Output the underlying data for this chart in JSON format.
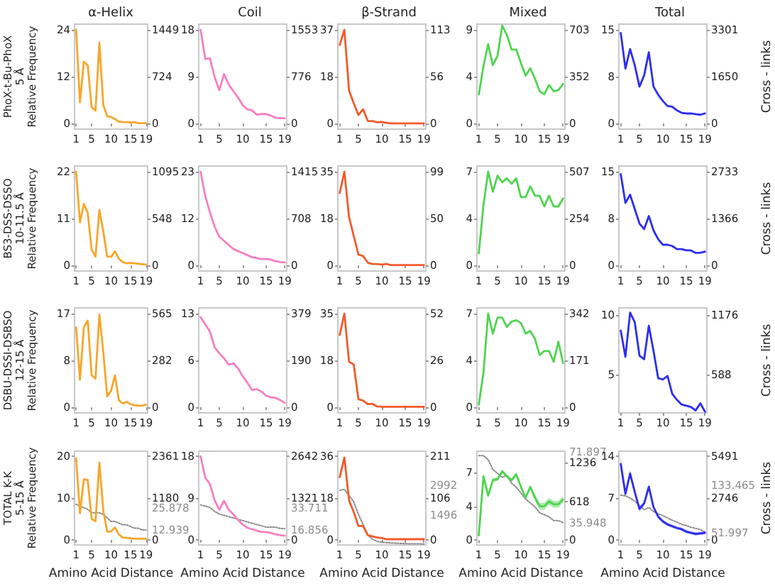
{
  "chart_data": [
    {
      "type": "line",
      "title": "α-Helix",
      "ylabel": "PhoX-t-Bu-PhoX\n5 Å\nRelative Frequency",
      "marker": "none",
      "x": [
        1,
        2,
        3,
        4,
        5,
        6,
        7,
        8,
        9,
        10,
        11,
        12,
        13,
        14,
        15,
        16,
        17,
        18,
        19
      ],
      "xlim": [
        0.6,
        19.4
      ],
      "xticks": [
        1,
        5,
        10,
        15,
        19
      ],
      "ylim": [
        -1.4,
        25.4
      ],
      "yticks": [
        0,
        12,
        24
      ],
      "y2lim": [
        -87,
        1536
      ],
      "y2ticks": [
        0,
        {
          "value": 724.5,
          "label": "724"
        },
        1449
      ],
      "series": [
        {
          "color": "#f7a62b",
          "values": [
            24,
            5.4,
            15.8,
            14.9,
            4.2,
            3.3,
            20.7,
            4.8,
            1.9,
            1.7,
            1.2,
            0.5,
            0.4,
            0.4,
            0.3,
            0.4,
            0.1,
            0.1,
            0.1
          ]
        }
      ]
    },
    {
      "type": "line",
      "title": "Coil",
      "marker": "none",
      "x": [
        1,
        2,
        3,
        4,
        5,
        6,
        7,
        8,
        9,
        10,
        11,
        12,
        13,
        14,
        15,
        16,
        17,
        18,
        19
      ],
      "xlim": [
        0.6,
        19.4
      ],
      "xticks": [
        1,
        5,
        10,
        15,
        19
      ],
      "ylim": [
        -1.1,
        19.1
      ],
      "yticks": [
        0,
        9,
        18
      ],
      "y2lim": [
        -93,
        1646
      ],
      "y2ticks": [
        0,
        {
          "value": 776.5,
          "label": "776"
        },
        1553
      ],
      "series": [
        {
          "color": "#f57fc0",
          "values": [
            18,
            12.4,
            12.5,
            8.9,
            6.4,
            9.5,
            7.5,
            6.2,
            5.0,
            3.5,
            2.7,
            2.5,
            1.7,
            1.8,
            1.8,
            1.5,
            1.1,
            1.0,
            1.0
          ]
        }
      ]
    },
    {
      "type": "line",
      "title": "β-Strand",
      "marker": "none",
      "x": [
        1,
        2,
        3,
        4,
        5,
        6,
        7,
        8,
        9,
        10,
        11,
        12,
        13,
        14,
        15,
        16,
        17,
        18,
        19
      ],
      "xlim": [
        0.6,
        19.4
      ],
      "xticks": [
        1,
        5,
        10,
        15,
        19
      ],
      "ylim": [
        -2.2,
        39.2
      ],
      "yticks": [
        0,
        {
          "value": 18.5,
          "label": "18"
        },
        37
      ],
      "y2lim": [
        -6.8,
        119.8
      ],
      "y2ticks": [
        0,
        {
          "value": 56.5,
          "label": "56"
        },
        113
      ],
      "series": [
        {
          "color": "#f25a2c",
          "values": [
            31,
            37,
            13,
            8,
            3.4,
            5.6,
            1,
            1,
            0.5,
            0.6,
            0.3,
            0.1,
            0.1,
            0.1,
            0.1,
            0.1,
            0.1,
            0.1,
            0.1
          ]
        }
      ]
    },
    {
      "type": "line",
      "title": "Mixed",
      "marker": "none",
      "x": [
        1,
        2,
        3,
        4,
        5,
        6,
        7,
        8,
        9,
        10,
        11,
        12,
        13,
        14,
        15,
        16,
        17,
        18,
        19
      ],
      "xlim": [
        0.6,
        19.4
      ],
      "xticks": [
        1,
        5,
        10,
        15,
        19
      ],
      "ylim": [
        -0.54,
        9.54
      ],
      "yticks": [
        0,
        {
          "value": 4.5,
          "label": "4"
        },
        9
      ],
      "y2lim": [
        -42,
        745
      ],
      "y2ticks": [
        0,
        {
          "value": 351.5,
          "label": "352"
        },
        703
      ],
      "series": [
        {
          "color": "#4fd44f",
          "values": [
            2.8,
            5.5,
            7.6,
            5.6,
            6.5,
            9.4,
            8.5,
            7.1,
            7.1,
            5.8,
            4.6,
            5.3,
            4.3,
            3.1,
            2.8,
            3.7,
            3.1,
            3.2,
            3.8
          ]
        }
      ]
    },
    {
      "type": "line",
      "title": "Total",
      "y2label": "Cross - links",
      "marker": "none",
      "x": [
        1,
        2,
        3,
        4,
        5,
        6,
        7,
        8,
        9,
        10,
        11,
        12,
        13,
        14,
        15,
        16,
        17,
        18,
        19
      ],
      "xlim": [
        0.6,
        19.4
      ],
      "xticks": [
        1,
        5,
        10,
        15,
        19
      ],
      "ylim": [
        -0.9,
        15.9
      ],
      "yticks": [
        0,
        {
          "value": 7.5,
          "label": "8"
        },
        15
      ],
      "y2lim": [
        -198,
        3499
      ],
      "y2ticks": [
        0,
        {
          "value": 1650.5,
          "label": "1650"
        },
        3301
      ],
      "series": [
        {
          "color": "#2d2df0",
          "values": [
            14.5,
            8.8,
            11.9,
            9.3,
            5.9,
            7.7,
            11.4,
            5.9,
            4.6,
            3.6,
            2.8,
            2.7,
            2.1,
            1.7,
            1.6,
            1.6,
            1.5,
            1.4,
            1.6
          ]
        }
      ]
    },
    {
      "type": "line",
      "ylabel": "BS3-DSS-DSSO\n10-11.5 Å\nRelative Frequency",
      "marker": "none",
      "x": [
        1,
        2,
        3,
        4,
        5,
        6,
        7,
        8,
        9,
        10,
        11,
        12,
        13,
        14,
        15,
        16,
        17,
        18,
        19
      ],
      "xlim": [
        0.6,
        19.4
      ],
      "xticks": [
        1,
        5,
        10,
        15,
        19
      ],
      "ylim": [
        -1.3,
        23.3
      ],
      "yticks": [
        0,
        11,
        22
      ],
      "y2lim": [
        -66,
        1161
      ],
      "y2ticks": [
        0,
        {
          "value": 547.5,
          "label": "548"
        },
        1095
      ],
      "series": [
        {
          "color": "#f7a62b",
          "values": [
            22,
            10.1,
            14.4,
            12.3,
            3.7,
            2.1,
            13,
            8,
            2.1,
            2.0,
            3.3,
            1.6,
            0.8,
            0.5,
            0.6,
            0.5,
            0.4,
            0.3,
            0.2
          ]
        }
      ]
    },
    {
      "type": "line",
      "marker": "none",
      "x": [
        1,
        2,
        3,
        4,
        5,
        6,
        7,
        8,
        9,
        10,
        11,
        12,
        13,
        14,
        15,
        16,
        17,
        18,
        19
      ],
      "xlim": [
        0.6,
        19.4
      ],
      "xticks": [
        1,
        5,
        10,
        15,
        19
      ],
      "ylim": [
        -1.4,
        24.4
      ],
      "yticks": [
        0,
        {
          "value": 11.5,
          "label": "12"
        },
        23
      ],
      "y2lim": [
        -85,
        1500
      ],
      "y2ticks": [
        0,
        {
          "value": 707.5,
          "label": "708"
        },
        1415
      ],
      "series": [
        {
          "color": "#f57fc0",
          "values": [
            23,
            17,
            13,
            9.5,
            7,
            6,
            5,
            4,
            3.5,
            3,
            2.5,
            2,
            1.8,
            1.5,
            1.6,
            1.4,
            1,
            0.8,
            0.7
          ]
        }
      ]
    },
    {
      "type": "line",
      "marker": "none",
      "x": [
        1,
        2,
        3,
        4,
        5,
        6,
        7,
        8,
        9,
        10,
        11,
        12,
        13,
        14,
        15,
        16,
        17,
        18,
        19
      ],
      "xlim": [
        0.6,
        19.4
      ],
      "xticks": [
        1,
        5,
        10,
        15,
        19
      ],
      "ylim": [
        -2.1,
        37.1
      ],
      "yticks": [
        0,
        {
          "value": 17.5,
          "label": "18"
        },
        35
      ],
      "y2lim": [
        -5.9,
        104.9
      ],
      "y2ticks": [
        0,
        {
          "value": 49.5,
          "label": "50"
        },
        99
      ],
      "series": [
        {
          "color": "#f25a2c",
          "values": [
            27,
            35,
            18,
            11,
            4,
            3.5,
            1,
            0.5,
            0.5,
            0.3,
            0.5,
            0.1,
            0.1,
            0.1,
            0.1,
            0.1,
            0.1,
            0.1,
            0.1
          ]
        }
      ]
    },
    {
      "type": "line",
      "marker": "none",
      "x": [
        1,
        2,
        3,
        4,
        5,
        6,
        7,
        8,
        9,
        10,
        11,
        12,
        13,
        14,
        15,
        16,
        17,
        18,
        19
      ],
      "xlim": [
        0.6,
        19.4
      ],
      "xticks": [
        1,
        5,
        10,
        15,
        19
      ],
      "ylim": [
        -0.42,
        7.42
      ],
      "yticks": [
        0,
        {
          "value": 3.5,
          "label": "4"
        },
        7
      ],
      "y2lim": [
        -30,
        537
      ],
      "y2ticks": [
        0,
        {
          "value": 253.5,
          "label": "254"
        },
        507
      ],
      "series": [
        {
          "color": "#4fd44f",
          "values": [
            0.9,
            4.5,
            7,
            5.5,
            6.7,
            6.2,
            6.5,
            6.1,
            6.5,
            5.1,
            5.1,
            5.9,
            5.2,
            5.2,
            4.4,
            5.2,
            4.4,
            4.4,
            5.0
          ]
        }
      ]
    },
    {
      "type": "line",
      "y2label": "Cross - links",
      "marker": "none",
      "x": [
        1,
        2,
        3,
        4,
        5,
        6,
        7,
        8,
        9,
        10,
        11,
        12,
        13,
        14,
        15,
        16,
        17,
        18,
        19
      ],
      "xlim": [
        0.6,
        19.4
      ],
      "xticks": [
        1,
        5,
        10,
        15,
        19
      ],
      "ylim": [
        -0.9,
        15.9
      ],
      "yticks": [
        0,
        {
          "value": 7.5,
          "label": "8"
        },
        15
      ],
      "y2lim": [
        -164,
        2897
      ],
      "y2ticks": [
        0,
        {
          "value": 1366.5,
          "label": "1366"
        },
        2733
      ],
      "series": [
        {
          "color": "#2d2df0",
          "values": [
            14.6,
            10,
            11.3,
            9,
            6.7,
            5.8,
            7.9,
            5.6,
            4.2,
            3.3,
            3.3,
            3.1,
            2.6,
            2.6,
            2.4,
            2.4,
            2.0,
            2.0,
            2.2
          ]
        }
      ]
    },
    {
      "type": "line",
      "ylabel": "DSBU-DSSI-DSBSO\n12-15 Å\nRelative Frequency",
      "marker": "none",
      "x": [
        1,
        2,
        3,
        4,
        5,
        6,
        7,
        8,
        9,
        10,
        11,
        12,
        13,
        14,
        15,
        16,
        17,
        18,
        19
      ],
      "xlim": [
        0.6,
        19.4
      ],
      "xticks": [
        1,
        5,
        10,
        15,
        19
      ],
      "ylim": [
        -1.0,
        18.0
      ],
      "yticks": [
        0,
        {
          "value": 8.5,
          "label": "8"
        },
        17
      ],
      "y2lim": [
        -34,
        599
      ],
      "y2ticks": [
        0,
        {
          "value": 282.5,
          "label": "282"
        },
        565
      ],
      "series": [
        {
          "color": "#f7a62b",
          "values": [
            14.5,
            5,
            14.5,
            15.7,
            5.8,
            5.2,
            16.8,
            10,
            2,
            3,
            5.8,
            1.3,
            0.7,
            1,
            0.6,
            0.4,
            0.3,
            0.3,
            0.5
          ]
        }
      ]
    },
    {
      "type": "line",
      "marker": "none",
      "x": [
        1,
        2,
        3,
        4,
        5,
        6,
        7,
        8,
        9,
        10,
        11,
        12,
        13,
        14,
        15,
        16,
        17,
        18,
        19
      ],
      "xlim": [
        0.6,
        19.4
      ],
      "xticks": [
        1,
        5,
        10,
        15,
        19
      ],
      "ylim": [
        -0.78,
        13.78
      ],
      "yticks": [
        0,
        {
          "value": 6.5,
          "label": "6"
        },
        13
      ],
      "y2lim": [
        -23,
        402
      ],
      "y2ticks": [
        0,
        {
          "value": 189.5,
          "label": "190"
        },
        379
      ],
      "series": [
        {
          "color": "#f57fc0",
          "values": [
            12.5,
            11.5,
            10.5,
            8.3,
            7.5,
            6.8,
            5.9,
            6.1,
            5.4,
            4.3,
            3.4,
            2.4,
            2.5,
            2.2,
            1.6,
            1.4,
            1.3,
            1.0,
            0.6
          ]
        }
      ]
    },
    {
      "type": "line",
      "marker": "none",
      "x": [
        1,
        2,
        3,
        4,
        5,
        6,
        7,
        8,
        9,
        10,
        11,
        12,
        13,
        14,
        15,
        16,
        17,
        18,
        19
      ],
      "xlim": [
        0.6,
        19.4
      ],
      "xticks": [
        1,
        5,
        10,
        15,
        19
      ],
      "ylim": [
        -2.1,
        37.1
      ],
      "yticks": [
        0,
        {
          "value": 17.5,
          "label": "18"
        },
        35
      ],
      "y2lim": [
        -3.1,
        55.1
      ],
      "y2ticks": [
        0,
        26,
        52
      ],
      "series": [
        {
          "color": "#f25a2c",
          "values": [
            27,
            35,
            17,
            16,
            3,
            2.5,
            1.2,
            1.3,
            0.3,
            0.2,
            0.2,
            0.2,
            0.2,
            0.2,
            0.2,
            0.2,
            0.2,
            0.2,
            0.2
          ]
        }
      ]
    },
    {
      "type": "line",
      "marker": "none",
      "x": [
        1,
        2,
        3,
        4,
        5,
        6,
        7,
        8,
        9,
        10,
        11,
        12,
        13,
        14,
        15,
        16,
        17,
        18,
        19
      ],
      "xlim": [
        0.6,
        19.4
      ],
      "xticks": [
        1,
        5,
        10,
        15,
        19
      ],
      "ylim": [
        -0.42,
        7.42
      ],
      "yticks": [
        0,
        {
          "value": 3.5,
          "label": "4"
        },
        7
      ],
      "y2lim": [
        -21,
        363
      ],
      "y2ticks": [
        0,
        171,
        342
      ],
      "series": [
        {
          "color": "#4fd44f",
          "values": [
            0.2,
            2.6,
            7,
            5.5,
            6.7,
            6.7,
            6.0,
            6.4,
            6.5,
            6.3,
            5.5,
            5.7,
            5.1,
            3.9,
            4.2,
            4.2,
            3.4,
            4.9,
            3.3
          ]
        }
      ]
    },
    {
      "type": "line",
      "y2label": "Cross - links",
      "marker": "none",
      "x": [
        1,
        2,
        3,
        4,
        5,
        6,
        7,
        8,
        9,
        10,
        11,
        12,
        13,
        14,
        15,
        16,
        17,
        18,
        19
      ],
      "xlim": [
        0.6,
        19.4
      ],
      "xticks": [
        1,
        5,
        10,
        15,
        19
      ],
      "ylim": [
        1.8,
        10.6
      ],
      "yticks": [
        5,
        10
      ],
      "y2lim": [
        212,
        1247
      ],
      "y2ticks": [
        588,
        1176
      ],
      "series": [
        {
          "color": "#2d2df0",
          "values": [
            8.7,
            6.5,
            10.2,
            9.4,
            6.6,
            6.3,
            9.1,
            7,
            4.7,
            4.6,
            4.9,
            3.4,
            2.9,
            2.5,
            2.4,
            2.3,
            2.0,
            2.6,
            1.9
          ]
        }
      ]
    },
    {
      "type": "line",
      "ylabel": "TOTAL K-K\n5-15 Å\nRelative Frequency",
      "xlabel": "Amino Acid Distance",
      "marker": "none",
      "x": [
        1,
        2,
        3,
        4,
        5,
        6,
        7,
        8,
        9,
        10,
        11,
        12,
        13,
        14,
        15,
        16,
        17,
        18,
        19
      ],
      "xlim": [
        0.6,
        19.4
      ],
      "xticks": [
        1,
        5,
        10,
        15,
        19
      ],
      "ylim": [
        -1.2,
        21.2
      ],
      "yticks": [
        0,
        10,
        20
      ],
      "y2lim": [
        -142,
        2503
      ],
      "y2ticks": [
        0,
        {
          "value": 1180.5,
          "label": "1180"
        },
        2361
      ],
      "y3lim": [
        4.2,
        59.0
      ],
      "y3ticks": [
        12.939,
        25.878
      ],
      "series": [
        {
          "color": "#f7a62b",
          "values": [
            19.5,
            6.4,
            14.5,
            14.3,
            5,
            4.5,
            18.5,
            7,
            2,
            2,
            3,
            1.3,
            0.6,
            0.5,
            0.4,
            0.3,
            0.3,
            0.3,
            0.3
          ]
        },
        {
          "axis": "y3",
          "color": "#8c8c8c",
          "line_style": "dotted",
          "values": [
            28,
            27,
            26,
            25,
            23,
            23,
            23,
            22,
            20,
            18,
            18,
            17,
            16,
            16,
            15,
            14,
            14,
            13,
            13
          ]
        }
      ]
    },
    {
      "type": "line",
      "xlabel": "Amino Acid Distance",
      "marker": "none",
      "x": [
        1,
        2,
        3,
        4,
        5,
        6,
        7,
        8,
        9,
        10,
        11,
        12,
        13,
        14,
        15,
        16,
        17,
        18,
        19
      ],
      "xlim": [
        0.6,
        19.4
      ],
      "xticks": [
        1,
        5,
        10,
        15,
        19
      ],
      "ylim": [
        -1.1,
        19.1
      ],
      "yticks": [
        0,
        9,
        18
      ],
      "y2lim": [
        -159,
        2801
      ],
      "y2ticks": [
        0,
        1321,
        2642
      ],
      "y3lim": [
        5.4,
        76.9
      ],
      "y3ticks": [
        16.856,
        33.711
      ],
      "series": [
        {
          "color": "#f57fc0",
          "values": [
            18,
            13.4,
            12,
            8.5,
            6.5,
            8.4,
            6.5,
            5.5,
            4.3,
            3.3,
            2.6,
            2.3,
            2,
            1.7,
            1.7,
            1.5,
            1.2,
            1.0,
            0.9
          ]
        },
        {
          "axis": "y3",
          "color": "#8c8c8c",
          "line_style": "dotted",
          "values": [
            36,
            35,
            34,
            31,
            29,
            28,
            27,
            26,
            25,
            24,
            23,
            22,
            21,
            20,
            19,
            19,
            19,
            18,
            18
          ]
        }
      ]
    },
    {
      "type": "line",
      "xlabel": "Amino Acid Distance",
      "marker": "none",
      "x": [
        1,
        2,
        3,
        4,
        5,
        6,
        7,
        8,
        9,
        10,
        11,
        12,
        13,
        14,
        15,
        16,
        17,
        18,
        19
      ],
      "xlim": [
        0.6,
        19.4
      ],
      "xticks": [
        1,
        5,
        10,
        15,
        19
      ],
      "ylim": [
        -2.2,
        38.2
      ],
      "yticks": [
        0,
        18,
        36
      ],
      "y2lim": [
        -13,
        224
      ],
      "y2ticks": [
        0,
        {
          "value": 105.5,
          "label": "106"
        },
        211
      ],
      "y3lim": [
        0,
        4700
      ],
      "y3ticks": [
        1496,
        2992
      ],
      "series": [
        {
          "color": "#f25a2c",
          "values": [
            27,
            35.5,
            17,
            12,
            6,
            6,
            2,
            1.5,
            1,
            0.8,
            0.3,
            0.3,
            0.3,
            0.3,
            0.3,
            0.3,
            0.3,
            0.3,
            0.3
          ]
        },
        {
          "axis": "y3",
          "color": "#8c8c8c",
          "line_style": "dotted",
          "values": [
            2740,
            2790,
            2480,
            2160,
            1540,
            1020,
            500,
            290,
            180,
            140,
            120,
            100,
            90,
            80,
            70,
            60,
            60,
            60,
            50
          ]
        }
      ]
    },
    {
      "type": "line",
      "xlabel": "Amino Acid Distance",
      "marker": "none",
      "x": [
        1,
        2,
        3,
        4,
        5,
        6,
        7,
        8,
        9,
        10,
        11,
        12,
        13,
        14,
        15,
        16,
        17,
        18,
        19
      ],
      "xlim": [
        0.6,
        19.4
      ],
      "xticks": [
        1,
        5,
        10,
        15,
        19
      ],
      "ylim": [
        -0.5,
        9.19
      ],
      "yticks": [
        0,
        {
          "value": 3.5,
          "label": "4"
        },
        7
      ],
      "y2lim": [
        -77,
        1420
      ],
      "y2ticks": [
        0,
        618,
        1236
      ],
      "y3lim": [
        24.6,
        72.3
      ],
      "y3ticks": [
        35.948,
        71.897
      ],
      "series": [
        {
          "color": "#4fd44f",
          "values": [
            0.5,
            6.6,
            4.6,
            6.2,
            6.3,
            7.1,
            6.6,
            6.2,
            6.8,
            5.5,
            4.4,
            5.5,
            4.4,
            3.5,
            3.5,
            4,
            3.7,
            3.7,
            4.2
          ],
          "lower": [
            0.3,
            6.4,
            4.4,
            6.0,
            6.1,
            6.9,
            6.4,
            6.0,
            6.6,
            5.3,
            4.2,
            5.3,
            4.05,
            3.15,
            3.15,
            3.65,
            3.35,
            3.35,
            3.85
          ],
          "upper": [
            0.7,
            6.8,
            4.8,
            6.4,
            6.5,
            7.3,
            6.8,
            6.4,
            7.0,
            5.7,
            4.6,
            5.7,
            4.75,
            3.85,
            3.85,
            4.35,
            4.05,
            4.05,
            4.55
          ]
        },
        {
          "axis": "y3",
          "color": "#8c8c8c",
          "line_style": "dotted",
          "values": [
            70,
            70,
            68,
            63,
            61,
            59,
            60,
            56,
            54,
            51,
            48,
            46,
            44,
            41,
            40,
            39,
            37,
            37,
            36
          ]
        }
      ]
    },
    {
      "type": "line",
      "xlabel": "Amino Acid Distance",
      "y2label": "Cross - links",
      "marker": "none",
      "x": [
        1,
        2,
        3,
        4,
        5,
        6,
        7,
        8,
        9,
        10,
        11,
        12,
        13,
        14,
        15,
        16,
        17,
        18,
        19
      ],
      "xlim": [
        0.6,
        19.4
      ],
      "xticks": [
        1,
        5,
        10,
        15,
        19
      ],
      "ylim": [
        -0.84,
        14.84
      ],
      "yticks": [
        0,
        7,
        14
      ],
      "y2lim": [
        -329,
        5820
      ],
      "y2ticks": [
        0,
        {
          "value": 2745.5,
          "label": "2746"
        },
        5491
      ],
      "y3lim": [
        30.6,
        191.4
      ],
      "y3ticks": [
        51.997,
        133.465
      ],
      "series": [
        {
          "color": "#2d2df0",
          "values": [
            12.7,
            7.7,
            11.1,
            8,
            5.2,
            6.1,
            8.9,
            5.5,
            3.9,
            3.1,
            2.6,
            2.3,
            2.0,
            1.8,
            1.4,
            1.2,
            1.0,
            1.1,
            1.2
          ],
          "lower": [
            11.5,
            7.3,
            10.5,
            7.6,
            4.8,
            5.8,
            8.5,
            5.2,
            3.6,
            2.85,
            2.35,
            2.05,
            1.75,
            1.55,
            1.15,
            0.95,
            0.75,
            0.85,
            0.95
          ],
          "upper": [
            13.9,
            8.1,
            11.7,
            8.4,
            5.6,
            6.4,
            9.3,
            5.8,
            4.2,
            3.35,
            2.85,
            2.55,
            2.25,
            2.05,
            1.65,
            1.45,
            1.25,
            1.35,
            1.45
          ]
        },
        {
          "axis": "y3",
          "color": "#8c8c8c",
          "line_style": "dotted",
          "values": [
            116,
            115,
            111,
            106,
            98,
            91,
            95,
            88,
            84,
            81,
            77,
            73,
            70,
            66,
            64,
            61,
            59,
            57,
            53
          ]
        }
      ]
    }
  ]
}
